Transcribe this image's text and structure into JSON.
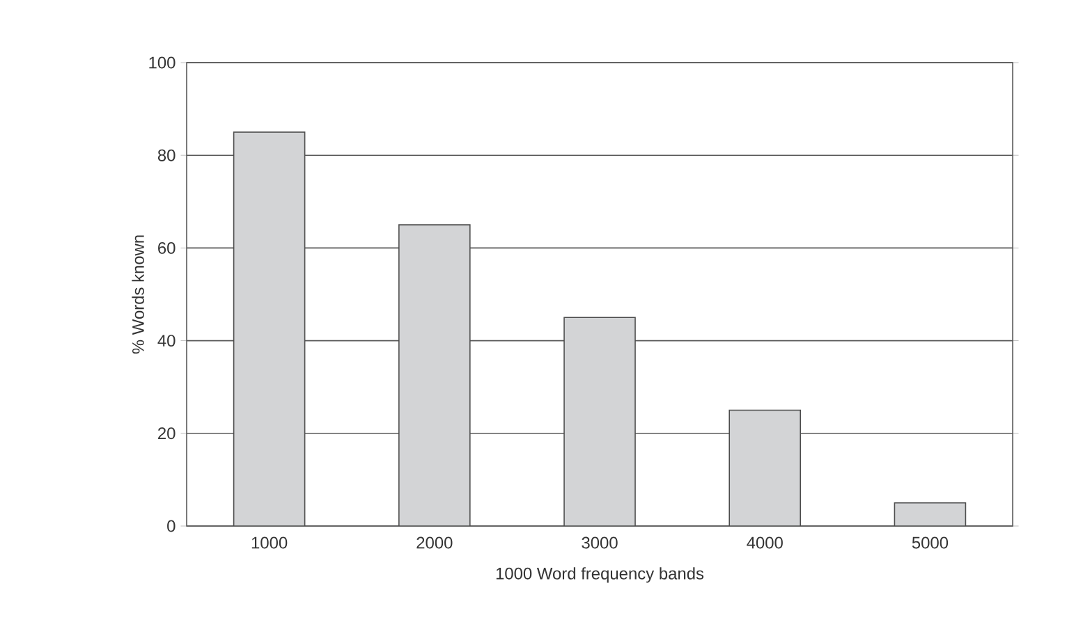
{
  "chart_data": {
    "type": "bar",
    "xlabel": "1000 Word frequency bands",
    "ylabel": "% Words known",
    "categories": [
      "1000",
      "2000",
      "3000",
      "4000",
      "5000"
    ],
    "values": [
      85,
      65,
      45,
      25,
      5
    ],
    "color": "#d3d4d6",
    "ylim": [
      0,
      100
    ],
    "yticks": [
      0,
      20,
      40,
      60,
      80,
      100
    ],
    "grid": "y"
  }
}
